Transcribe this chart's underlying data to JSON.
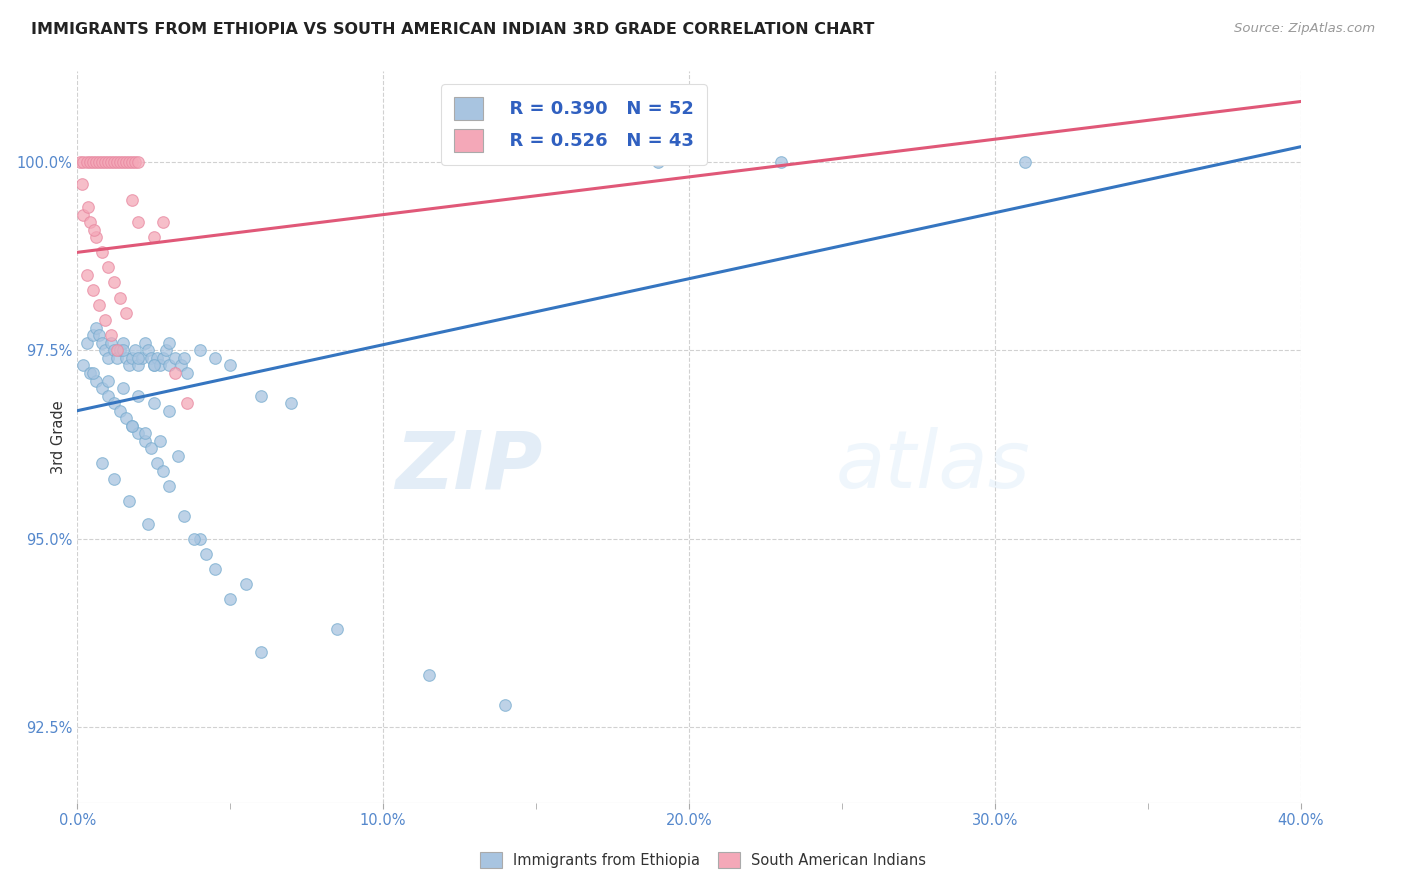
{
  "title": "IMMIGRANTS FROM ETHIOPIA VS SOUTH AMERICAN INDIAN 3RD GRADE CORRELATION CHART",
  "source": "Source: ZipAtlas.com",
  "ylabel": "3rd Grade",
  "ytick_values": [
    92.5,
    95.0,
    97.5,
    100.0
  ],
  "xlim": [
    0.0,
    40.0
  ],
  "ylim": [
    91.5,
    101.2
  ],
  "legend_blue_R": "R = 0.390",
  "legend_blue_N": "N = 52",
  "legend_pink_R": "R = 0.526",
  "legend_pink_N": "N = 43",
  "watermark_zip": "ZIP",
  "watermark_atlas": "atlas",
  "blue_color": "#a8c4e0",
  "blue_edge_color": "#7aadd0",
  "pink_color": "#f4a8b8",
  "pink_edge_color": "#e888a0",
  "blue_line_color": "#3575c0",
  "pink_line_color": "#e05878",
  "blue_scatter_x": [
    0.3,
    0.5,
    0.6,
    0.7,
    0.8,
    0.9,
    1.0,
    1.1,
    1.2,
    1.3,
    1.4,
    1.5,
    1.6,
    1.7,
    1.8,
    1.9,
    2.0,
    2.1,
    2.2,
    2.3,
    2.4,
    2.5,
    2.6,
    2.7,
    2.8,
    2.9,
    3.0,
    3.2,
    3.4,
    3.6,
    0.2,
    0.4,
    0.6,
    0.8,
    1.0,
    1.2,
    1.4,
    1.6,
    1.8,
    2.0,
    2.2,
    2.4,
    2.6,
    2.8,
    3.0,
    3.5,
    4.0,
    4.5,
    5.0,
    6.0,
    19.0,
    23.0,
    31.0
  ],
  "blue_scatter_y": [
    97.6,
    97.7,
    97.8,
    97.7,
    97.6,
    97.5,
    97.4,
    97.6,
    97.5,
    97.4,
    97.5,
    97.6,
    97.4,
    97.3,
    97.4,
    97.5,
    97.3,
    97.4,
    97.6,
    97.5,
    97.4,
    97.3,
    97.4,
    97.3,
    97.4,
    97.5,
    97.3,
    97.4,
    97.3,
    97.2,
    97.3,
    97.2,
    97.1,
    97.0,
    96.9,
    96.8,
    96.7,
    96.6,
    96.5,
    96.4,
    96.3,
    96.2,
    96.0,
    95.9,
    95.7,
    95.3,
    95.0,
    94.6,
    94.2,
    93.5,
    100.0,
    100.0,
    100.0
  ],
  "blue_scatter_x2": [
    1.5,
    2.0,
    2.5,
    3.0,
    3.5,
    4.0,
    4.5,
    5.0,
    6.0,
    7.0,
    0.5,
    1.0,
    1.5,
    2.0,
    2.5,
    3.0,
    1.8,
    2.2,
    2.7,
    3.3,
    0.8,
    1.2,
    1.7,
    2.3,
    3.8,
    4.2,
    5.5,
    8.5,
    11.5,
    14.0
  ],
  "blue_scatter_y2": [
    97.5,
    97.4,
    97.3,
    97.6,
    97.4,
    97.5,
    97.4,
    97.3,
    96.9,
    96.8,
    97.2,
    97.1,
    97.0,
    96.9,
    96.8,
    96.7,
    96.5,
    96.4,
    96.3,
    96.1,
    96.0,
    95.8,
    95.5,
    95.2,
    95.0,
    94.8,
    94.4,
    93.8,
    93.2,
    92.8
  ],
  "pink_scatter_x": [
    0.1,
    0.2,
    0.3,
    0.4,
    0.5,
    0.6,
    0.7,
    0.8,
    0.9,
    1.0,
    1.1,
    1.2,
    1.3,
    1.4,
    1.5,
    1.6,
    1.7,
    1.8,
    1.9,
    2.0,
    0.2,
    0.4,
    0.6,
    0.8,
    1.0,
    1.2,
    1.4,
    1.6,
    1.8,
    2.0,
    0.3,
    0.5,
    0.7,
    0.9,
    1.1,
    1.3,
    2.5,
    2.8,
    3.2,
    3.6,
    0.15,
    0.35,
    0.55
  ],
  "pink_scatter_y": [
    100.0,
    100.0,
    100.0,
    100.0,
    100.0,
    100.0,
    100.0,
    100.0,
    100.0,
    100.0,
    100.0,
    100.0,
    100.0,
    100.0,
    100.0,
    100.0,
    100.0,
    100.0,
    100.0,
    100.0,
    99.3,
    99.2,
    99.0,
    98.8,
    98.6,
    98.4,
    98.2,
    98.0,
    99.5,
    99.2,
    98.5,
    98.3,
    98.1,
    97.9,
    97.7,
    97.5,
    99.0,
    99.2,
    97.2,
    96.8,
    99.7,
    99.4,
    99.1
  ],
  "blue_line_x": [
    0.0,
    40.0
  ],
  "blue_line_y": [
    96.7,
    100.2
  ],
  "pink_line_x": [
    0.0,
    40.0
  ],
  "pink_line_y": [
    98.8,
    100.8
  ]
}
